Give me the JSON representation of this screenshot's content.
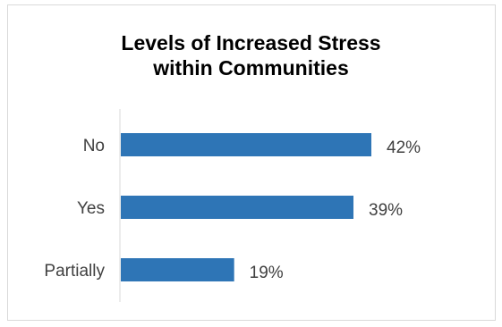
{
  "chart_data": {
    "type": "bar",
    "orientation": "horizontal",
    "title_line1": "Levels of Increased Stress",
    "title_line2": "within Communities",
    "categories": [
      "No",
      "Yes",
      "Partially"
    ],
    "values": [
      42,
      39,
      19
    ],
    "data_labels": [
      "42%",
      "39%",
      "19%"
    ],
    "xlim": [
      0,
      50
    ],
    "grid": false,
    "legend": "none",
    "bar_color": "#2e75b6"
  }
}
